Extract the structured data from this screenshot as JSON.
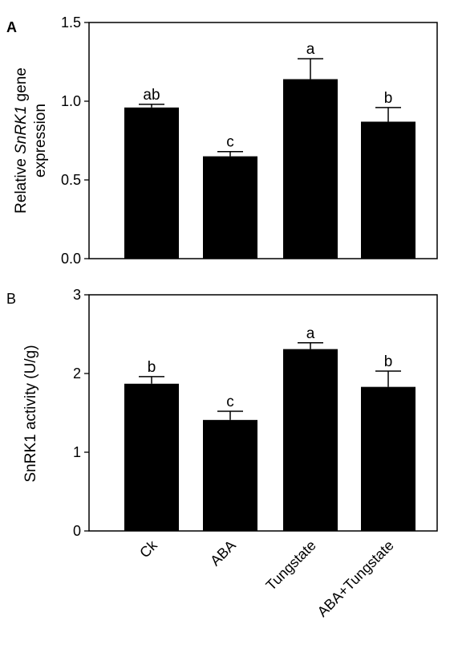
{
  "chart_data": [
    {
      "type": "bar",
      "panel_label": "A",
      "categories": [
        "Ck",
        "ABA",
        "Tungstate",
        "ABA+Tungstate"
      ],
      "values": [
        0.96,
        0.65,
        1.14,
        0.87
      ],
      "errors": [
        0.02,
        0.03,
        0.13,
        0.09
      ],
      "significance": [
        "ab",
        "c",
        "a",
        "b"
      ],
      "ylabel_line1_prefix": "Relative ",
      "ylabel_line1_italic": "SnRK1",
      "ylabel_line1_suffix": " gene",
      "ylabel_line2": "expression",
      "ylim": [
        0,
        1.5
      ],
      "yticks": [
        0.0,
        0.5,
        1.0,
        1.5
      ],
      "ytick_labels": [
        "0.0",
        "0.5",
        "1.0",
        "1.5"
      ],
      "bar_color": "#000000"
    },
    {
      "type": "bar",
      "panel_label": "B",
      "categories": [
        "Ck",
        "ABA",
        "Tungstate",
        "ABA+Tungstate"
      ],
      "values": [
        1.87,
        1.41,
        2.31,
        1.83
      ],
      "errors": [
        0.09,
        0.11,
        0.08,
        0.2
      ],
      "significance": [
        "b",
        "c",
        "a",
        "b"
      ],
      "ylabel": "SnRK1 activity (U/g)",
      "ylim": [
        0,
        3
      ],
      "yticks": [
        0,
        1,
        2,
        3
      ],
      "ytick_labels": [
        "0",
        "1",
        "2",
        "3"
      ],
      "bar_color": "#000000"
    }
  ]
}
